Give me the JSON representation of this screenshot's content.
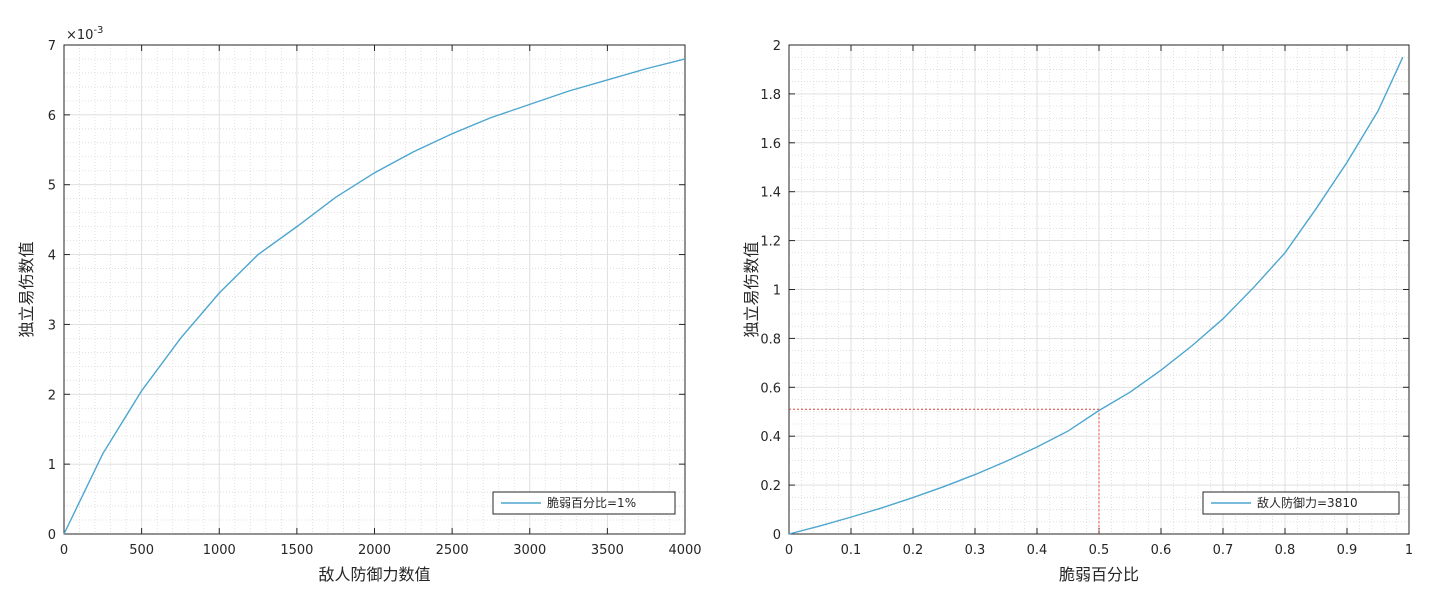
{
  "chart_data": [
    {
      "type": "line",
      "xlabel": "敌人防御力数值",
      "ylabel": "独立易伤数值",
      "exponent_label": "×10",
      "exponent_power": "-3",
      "xlim": [
        0,
        4000
      ],
      "ylim": [
        0,
        7
      ],
      "xticks": [
        "0",
        "500",
        "1000",
        "1500",
        "2000",
        "2500",
        "3000",
        "3500",
        "4000"
      ],
      "yticks": [
        "0",
        "1",
        "2",
        "3",
        "4",
        "5",
        "6",
        "7"
      ],
      "ytick_scale": 0.001,
      "grid": true,
      "minor_grid": true,
      "legend_position": "bottom-right",
      "series": [
        {
          "name": "脆弱百分比=1%",
          "color": "#4da6cf",
          "x": [
            0,
            250,
            500,
            750,
            1000,
            1250,
            1500,
            1750,
            2000,
            2250,
            2500,
            2750,
            3000,
            3250,
            3500,
            3750,
            4000
          ],
          "y": [
            0,
            0.00115,
            0.00205,
            0.0028,
            0.00345,
            0.004,
            0.0044,
            0.00482,
            0.00517,
            0.00547,
            0.00573,
            0.00596,
            0.00615,
            0.00634,
            0.0065,
            0.00666,
            0.0068
          ]
        }
      ]
    },
    {
      "type": "line",
      "xlabel": "脆弱百分比",
      "ylabel": "独立易伤数值",
      "xlim": [
        0,
        1
      ],
      "ylim": [
        0,
        2
      ],
      "xticks": [
        "0",
        "0.1",
        "0.2",
        "0.3",
        "0.4",
        "0.5",
        "0.6",
        "0.7",
        "0.8",
        "0.9",
        "1"
      ],
      "yticks": [
        "0",
        "0.2",
        "0.4",
        "0.6",
        "0.8",
        "1",
        "1.2",
        "1.4",
        "1.6",
        "1.8",
        "2"
      ],
      "grid": true,
      "minor_grid": true,
      "legend_position": "bottom-right",
      "series": [
        {
          "name": "敌人防御力=3810",
          "color": "#4da6cf",
          "x": [
            0,
            0.05,
            0.1,
            0.15,
            0.2,
            0.25,
            0.3,
            0.35,
            0.4,
            0.45,
            0.5,
            0.55,
            0.6,
            0.65,
            0.7,
            0.75,
            0.8,
            0.85,
            0.9,
            0.95,
            0.99
          ],
          "y": [
            0,
            0.033,
            0.069,
            0.107,
            0.149,
            0.194,
            0.243,
            0.297,
            0.356,
            0.421,
            0.505,
            0.58,
            0.67,
            0.77,
            0.88,
            1.01,
            1.15,
            1.33,
            1.52,
            1.73,
            1.95
          ]
        }
      ],
      "reference": {
        "x": 0.5,
        "y": 0.51,
        "color": "#e0463c"
      }
    }
  ]
}
